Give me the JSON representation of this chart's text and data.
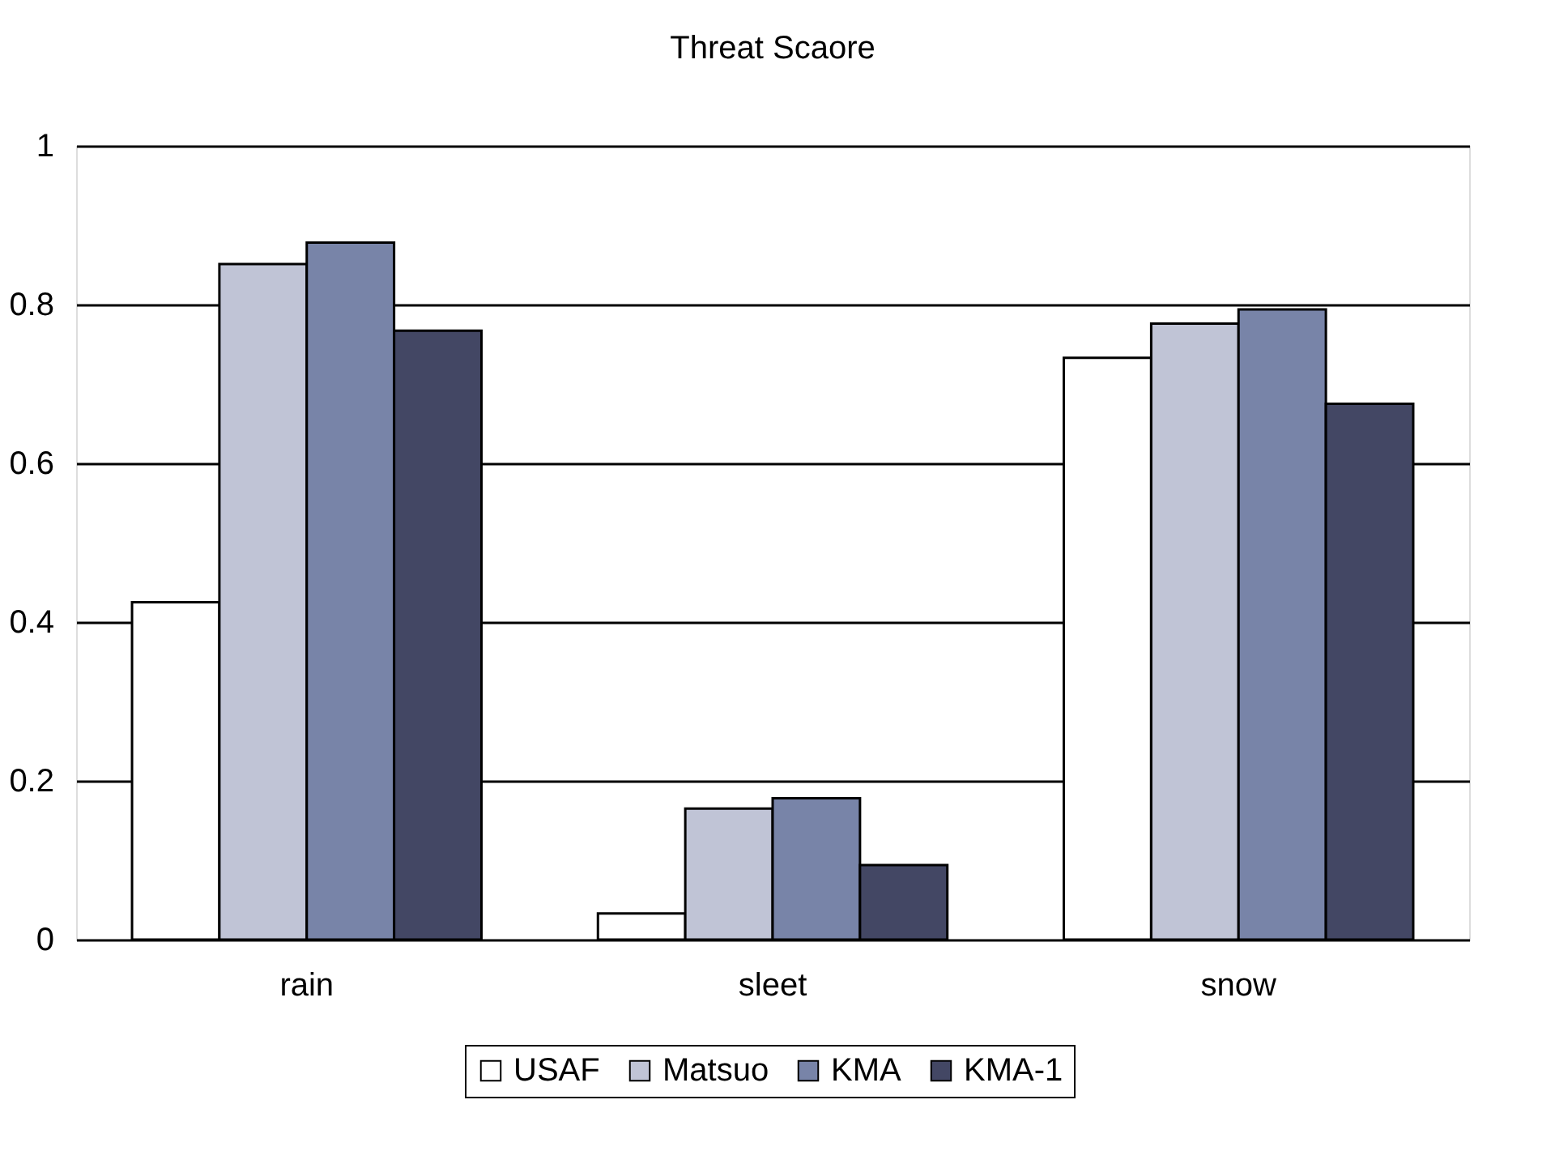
{
  "chart_data": {
    "type": "bar",
    "title": "Threat Scaore",
    "categories": [
      "rain",
      "sleet",
      "snow"
    ],
    "series": [
      {
        "name": "USAF",
        "color": "#ffffff",
        "values": [
          0.425,
          0.033,
          0.733
        ]
      },
      {
        "name": "Matsuo",
        "color": "#c0c4d6",
        "values": [
          0.851,
          0.165,
          0.776
        ]
      },
      {
        "name": "KMA",
        "color": "#7884a8",
        "values": [
          0.878,
          0.178,
          0.794
        ]
      },
      {
        "name": "KMA-1",
        "color": "#434764",
        "values": [
          0.767,
          0.094,
          0.675
        ]
      }
    ],
    "ylim": [
      0,
      1
    ],
    "yticks": [
      0,
      0.2,
      0.4,
      0.6,
      0.8,
      1
    ],
    "grid": "y",
    "legend": "bottom"
  }
}
